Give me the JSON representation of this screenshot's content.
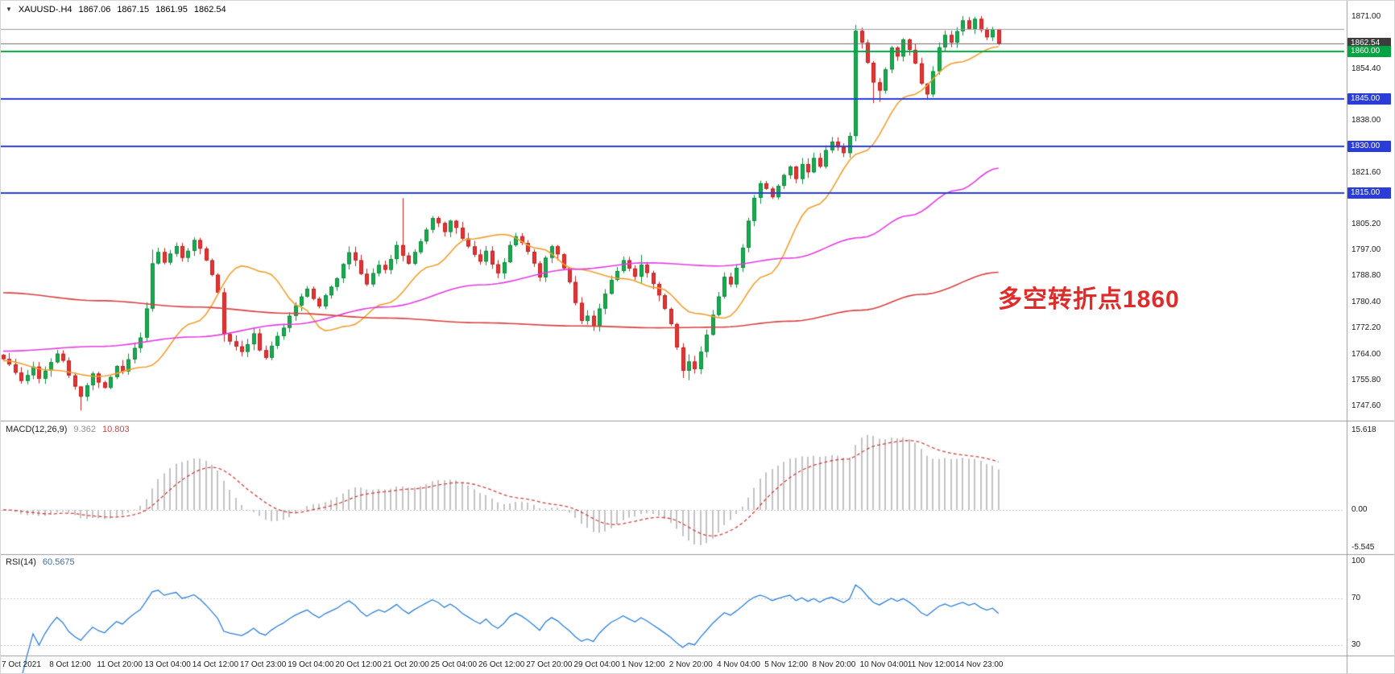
{
  "header": {
    "collapse_icon": "▼",
    "symbol_tf": "XAUUSD-.H4",
    "open": "1867.06",
    "high": "1867.15",
    "low": "1861.95",
    "close": "1862.54"
  },
  "annotation": {
    "text": "多空转折点1860",
    "color": "#e02b2b"
  },
  "price_axis": {
    "ticks": [
      {
        "label": "1871.00",
        "price": 1871.0
      },
      {
        "label": "1854.40",
        "price": 1854.4
      },
      {
        "label": "1838.00",
        "price": 1838.0
      },
      {
        "label": "1821.60",
        "price": 1821.6
      },
      {
        "label": "1805.20",
        "price": 1805.2
      },
      {
        "label": "1797.00",
        "price": 1797.0
      },
      {
        "label": "1788.80",
        "price": 1788.8
      },
      {
        "label": "1780.40",
        "price": 1780.4
      },
      {
        "label": "1772.20",
        "price": 1772.2
      },
      {
        "label": "1764.00",
        "price": 1764.0
      },
      {
        "label": "1755.80",
        "price": 1755.8
      },
      {
        "label": "1747.60",
        "price": 1747.6
      }
    ],
    "boxes": [
      {
        "label": "1862.54",
        "price": 1862.54,
        "bg": "#3d3d3d",
        "fg": "#ffffff"
      },
      {
        "label": "1860.00",
        "price": 1860.0,
        "bg": "#00a443",
        "fg": "#ffffff"
      },
      {
        "label": "1845.00",
        "price": 1845.0,
        "bg": "#2b3dd8",
        "fg": "#ffffff"
      },
      {
        "label": "1830.00",
        "price": 1830.0,
        "bg": "#2b3dd8",
        "fg": "#ffffff"
      },
      {
        "label": "1815.00",
        "price": 1815.0,
        "bg": "#2b3dd8",
        "fg": "#ffffff"
      }
    ]
  },
  "macd_panel": {
    "label": "MACD(12,26,9)",
    "value_main": "9.362",
    "value_signal": "10.803",
    "value_main_color": "#8f8f8f",
    "value_signal_color": "#c94545",
    "axis": [
      "15.618",
      "0.00",
      "-5.545"
    ],
    "histogram_color": "#c2c2c2",
    "signal_color": "#d23f3f"
  },
  "rsi_panel": {
    "label": "RSI(14)",
    "value": "60.5675",
    "value_color": "#3a6ea8",
    "axis_top": "100",
    "level_high": "70",
    "level_low": "30",
    "line_color": "#2e7fd6"
  },
  "time_axis": {
    "candles_per_label": 8,
    "labels": [
      "7 Oct 2021",
      "8 Oct 12:00",
      "11 Oct 20:00",
      "13 Oct 04:00",
      "14 Oct 12:00",
      "17 Oct 23:00",
      "19 Oct 04:00",
      "20 Oct 12:00",
      "21 Oct 20:00",
      "25 Oct 04:00",
      "26 Oct 12:00",
      "27 Oct 20:00",
      "29 Oct 04:00",
      "1 Nov 12:00",
      "2 Nov 20:00",
      "4 Nov 04:00",
      "5 Nov 12:00",
      "8 Nov 20:00",
      "10 Nov 04:00",
      "11 Nov 12:00",
      "14 Nov 23:00"
    ]
  },
  "chart_data": {
    "type": "candlestick",
    "symbol": "XAUUSD-",
    "timeframe": "H4",
    "price_range": [
      1744.0,
      1874.0
    ],
    "first_open": 1763.8,
    "closes": [
      1762.5,
      1760.8,
      1758.2,
      1755.6,
      1757.4,
      1760.1,
      1756.3,
      1758.8,
      1761.5,
      1764.2,
      1762.0,
      1757.3,
      1753.8,
      1750.6,
      1754.2,
      1757.9,
      1755.1,
      1753.4,
      1756.8,
      1760.3,
      1758.6,
      1762.4,
      1766.0,
      1769.3,
      1778.5,
      1792.8,
      1796.4,
      1793.1,
      1795.9,
      1798.3,
      1794.6,
      1796.8,
      1800.2,
      1797.5,
      1793.8,
      1789.2,
      1783.6,
      1770.4,
      1768.1,
      1766.5,
      1764.8,
      1767.2,
      1770.6,
      1765.3,
      1762.9,
      1766.7,
      1769.8,
      1772.4,
      1776.2,
      1779.5,
      1782.3,
      1784.8,
      1781.6,
      1779.2,
      1782.7,
      1785.4,
      1788.1,
      1792.6,
      1796.3,
      1793.8,
      1789.5,
      1786.2,
      1789.7,
      1792.3,
      1790.8,
      1794.2,
      1798.6,
      1795.3,
      1792.7,
      1796.4,
      1799.8,
      1803.5,
      1807.2,
      1805.6,
      1802.8,
      1806.3,
      1804.1,
      1800.7,
      1798.2,
      1795.6,
      1793.4,
      1796.8,
      1792.5,
      1789.7,
      1793.2,
      1798.6,
      1801.4,
      1799.3,
      1796.5,
      1792.8,
      1788.4,
      1794.6,
      1798.2,
      1795.7,
      1791.3,
      1786.9,
      1780.3,
      1774.6,
      1776.2,
      1772.8,
      1778.5,
      1783.2,
      1787.6,
      1790.4,
      1793.8,
      1791.2,
      1788.6,
      1792.4,
      1789.8,
      1786.3,
      1782.7,
      1778.4,
      1773.6,
      1766.2,
      1758.8,
      1761.7,
      1759.3,
      1764.8,
      1770.2,
      1776.5,
      1782.3,
      1788.6,
      1786.2,
      1791.4,
      1797.8,
      1806.3,
      1813.6,
      1818.2,
      1816.5,
      1813.8,
      1817.4,
      1820.8,
      1823.5,
      1819.6,
      1824.3,
      1821.7,
      1826.2,
      1823.5,
      1828.7,
      1831.4,
      1829.6,
      1827.8,
      1833.2,
      1866.5,
      1862.8,
      1856.4,
      1850.2,
      1847.6,
      1854.3,
      1861.2,
      1858.4,
      1863.8,
      1860.5,
      1856.2,
      1849.8,
      1846.4,
      1853.7,
      1861.3,
      1865.2,
      1862.8,
      1866.4,
      1869.8,
      1867.2,
      1870.3,
      1866.8,
      1864.5,
      1867.06,
      1862.54
    ],
    "wick_overrides": {
      "13": [
        1753.0,
        1746.2
      ],
      "24": [
        1780.5,
        1768.0
      ],
      "25": [
        1797.2,
        1777.5
      ],
      "37": [
        1785.0,
        1768.0
      ],
      "67": [
        1813.5,
        1793.5
      ],
      "107": [
        1795.5,
        1786.5
      ],
      "114": [
        1767.5,
        1756.5
      ],
      "115": [
        1764.0,
        1755.8
      ],
      "143": [
        1868.4,
        1831.5
      ],
      "146": [
        1857.0,
        1843.6
      ],
      "147": [
        1851.5,
        1844.0
      ],
      "155": [
        1850.0,
        1844.6
      ],
      "161": [
        1871.2,
        1865.0
      ],
      "163": [
        1871.0,
        1865.5
      ],
      "167": [
        1867.15,
        1861.95
      ]
    },
    "up_color": "#18ac50",
    "up_border": "#0c8a3c",
    "down_color": "#e43434",
    "down_border": "#c02020",
    "hlines": [
      {
        "price": 1867.0,
        "color": "#9c9c9c",
        "width": 1
      },
      {
        "price": 1862.54,
        "color": "#6e6e6e",
        "width": 1
      },
      {
        "price": 1860.0,
        "color": "#00a443",
        "width": 2
      },
      {
        "price": 1845.0,
        "color": "#2b3dd8",
        "width": 2
      },
      {
        "price": 1830.0,
        "color": "#2b3dd8",
        "width": 2
      },
      {
        "price": 1815.0,
        "color": "#2b3dd8",
        "width": 2
      }
    ],
    "moving_averages": [
      {
        "name": "ma-fast-orange",
        "color": "#f0a030",
        "anchors": [
          [
            0,
            1762.0
          ],
          [
            8,
            1759.0
          ],
          [
            16,
            1757.0
          ],
          [
            24,
            1760.0
          ],
          [
            32,
            1774.0
          ],
          [
            40,
            1792.0
          ],
          [
            44,
            1790.0
          ],
          [
            50,
            1779.0
          ],
          [
            54,
            1771.5
          ],
          [
            58,
            1773.0
          ],
          [
            64,
            1780.0
          ],
          [
            72,
            1792.0
          ],
          [
            78,
            1800.5
          ],
          [
            84,
            1802.0
          ],
          [
            90,
            1797.5
          ],
          [
            96,
            1791.0
          ],
          [
            104,
            1788.0
          ],
          [
            110,
            1785.0
          ],
          [
            116,
            1777.0
          ],
          [
            121,
            1775.5
          ],
          [
            128,
            1789.0
          ],
          [
            136,
            1811.0
          ],
          [
            144,
            1828.0
          ],
          [
            152,
            1846.0
          ],
          [
            160,
            1856.5
          ],
          [
            167,
            1861.5
          ]
        ]
      },
      {
        "name": "ma-mid-magenta",
        "color": "#e23ce2",
        "anchors": [
          [
            0,
            1765.0
          ],
          [
            16,
            1766.5
          ],
          [
            32,
            1769.5
          ],
          [
            48,
            1773.5
          ],
          [
            64,
            1779.0
          ],
          [
            80,
            1786.0
          ],
          [
            96,
            1791.0
          ],
          [
            108,
            1793.0
          ],
          [
            120,
            1792.0
          ],
          [
            132,
            1794.5
          ],
          [
            144,
            1801.0
          ],
          [
            152,
            1808.0
          ],
          [
            160,
            1816.0
          ],
          [
            167,
            1823.0
          ]
        ]
      },
      {
        "name": "ma-slow-red",
        "color": "#d84040",
        "anchors": [
          [
            0,
            1783.5
          ],
          [
            16,
            1781.0
          ],
          [
            32,
            1779.0
          ],
          [
            48,
            1777.0
          ],
          [
            64,
            1775.5
          ],
          [
            80,
            1774.0
          ],
          [
            96,
            1773.0
          ],
          [
            110,
            1772.4
          ],
          [
            120,
            1772.6
          ],
          [
            132,
            1774.5
          ],
          [
            144,
            1778.0
          ],
          [
            154,
            1783.0
          ],
          [
            167,
            1790.0
          ]
        ]
      }
    ]
  }
}
